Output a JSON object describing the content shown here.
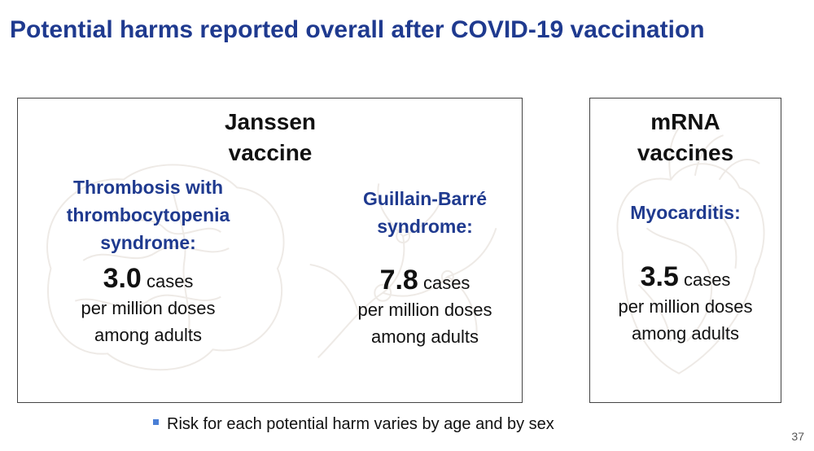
{
  "title": "Potential harms reported overall after COVID-19 vaccination",
  "janssen": {
    "heading": [
      "Janssen",
      "vaccine"
    ],
    "harms": [
      {
        "name": [
          "Thrombosis with",
          "thrombocytopenia",
          "syndrome:"
        ],
        "rate_value": "3.0",
        "rate_unit": "cases",
        "rate_lines": [
          "per million doses",
          "among adults"
        ]
      },
      {
        "name": [
          "Guillain-Barré",
          "syndrome:"
        ],
        "rate_value": "7.8",
        "rate_unit": "cases",
        "rate_lines": [
          "per million doses",
          "among adults"
        ]
      }
    ]
  },
  "mrna": {
    "heading": [
      "mRNA",
      "vaccines"
    ],
    "harms": [
      {
        "name": [
          "Myocarditis:"
        ],
        "rate_value": "3.5",
        "rate_unit": "cases",
        "rate_lines": [
          "per million doses",
          "among adults"
        ]
      }
    ]
  },
  "bullet_text": "Risk for each potential harm varies by age and by sex",
  "page_number": "37",
  "colors": {
    "title": "#1f3a8f",
    "bullet": "#4a7fd6",
    "border": "#444444"
  },
  "icons": [
    "brain-illustration",
    "nerve-illustration",
    "heart-illustration"
  ]
}
